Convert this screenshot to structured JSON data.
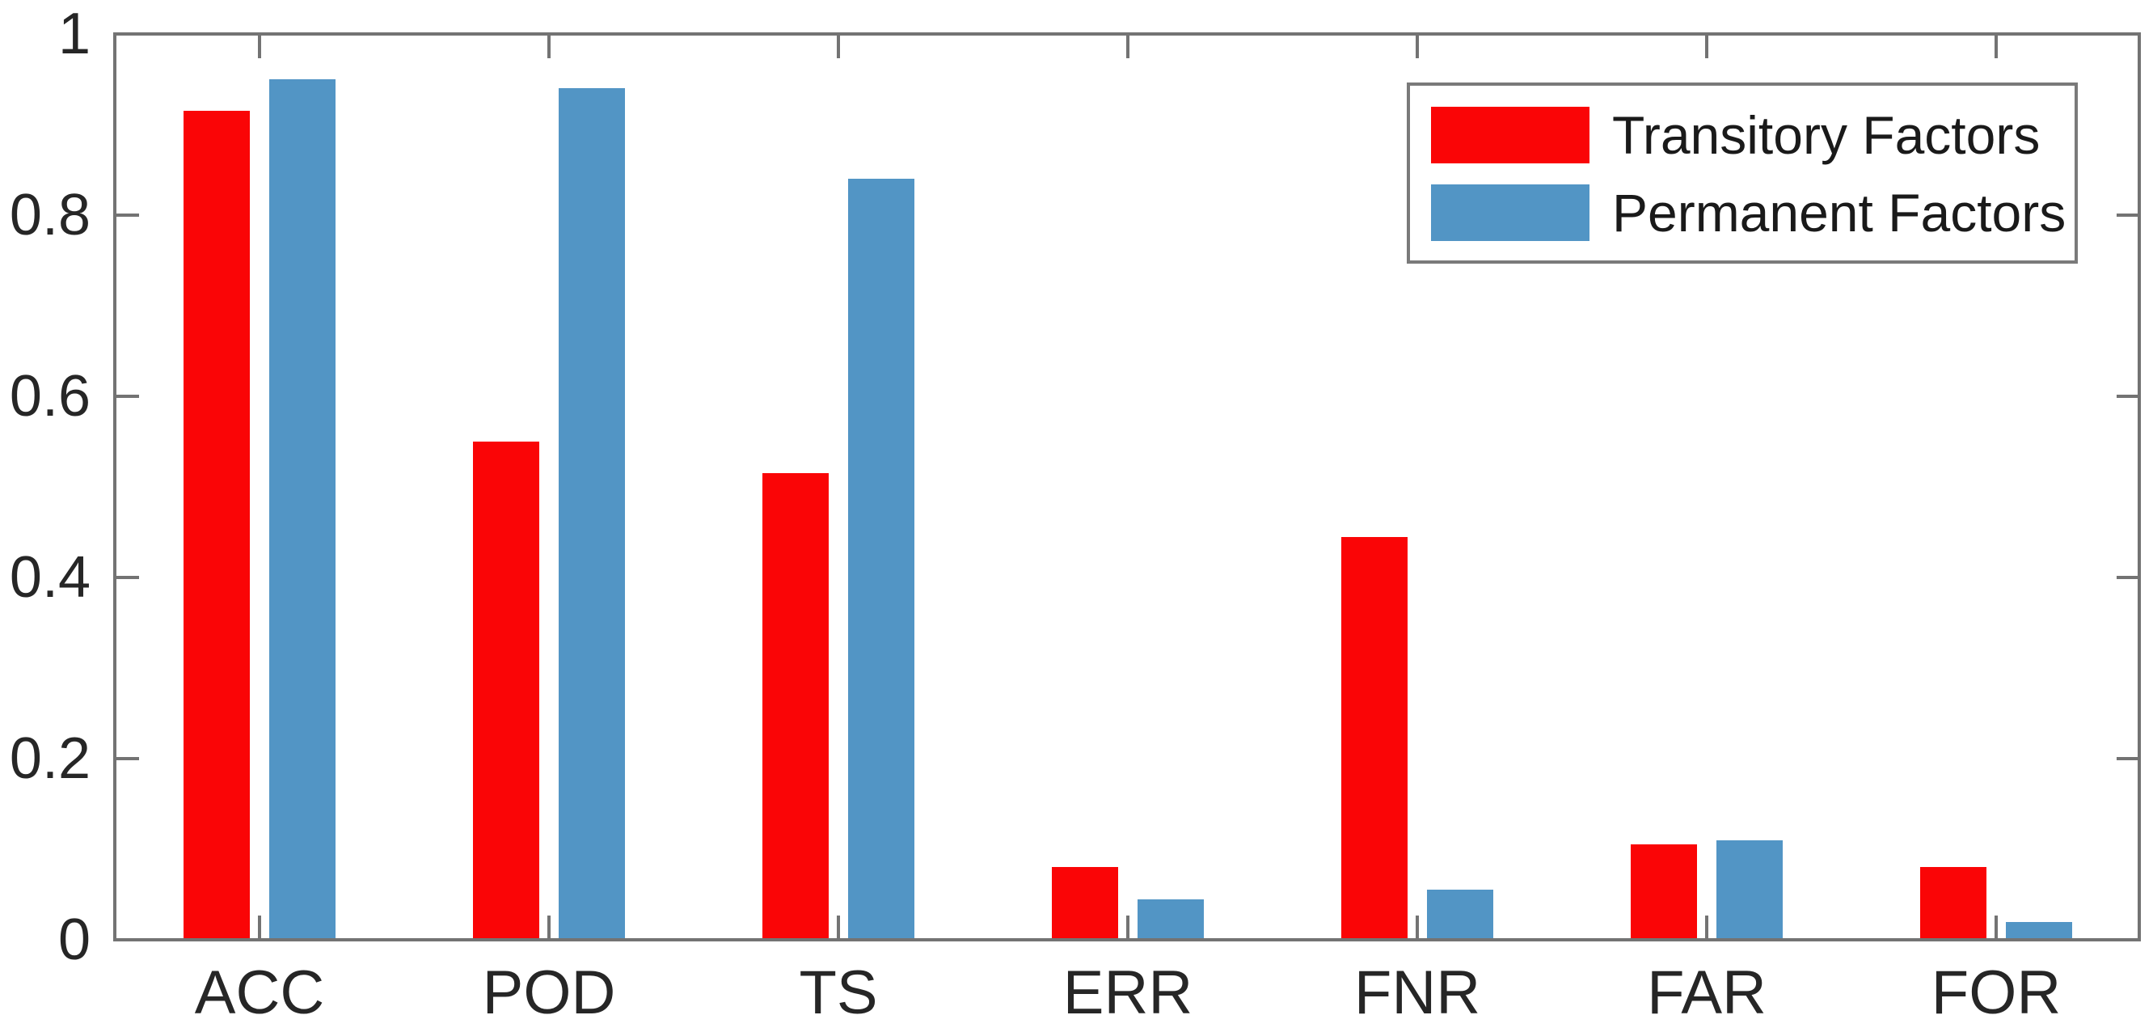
{
  "figure": {
    "background": "#ffffff"
  },
  "axis": {
    "frame_color": "#737373",
    "tick_label_color": "#262626",
    "ytick_labels": [
      "0",
      "0.2",
      "0.4",
      "0.6",
      "0.8",
      "1"
    ]
  },
  "chart_data": {
    "type": "bar",
    "categories": [
      "ACC",
      "POD",
      "TS",
      "ERR",
      "FNR",
      "FAR",
      "FOR"
    ],
    "series": [
      {
        "name": "Transitory Factors",
        "color": "#fa0506",
        "values": [
          0.915,
          0.55,
          0.515,
          0.08,
          0.445,
          0.105,
          0.08
        ]
      },
      {
        "name": "Permanent Factors",
        "color": "#5295c5",
        "values": [
          0.95,
          0.94,
          0.84,
          0.045,
          0.055,
          0.11,
          0.02
        ]
      }
    ],
    "title": "",
    "xlabel": "",
    "ylabel": "",
    "ylim": [
      0,
      1
    ],
    "yticks": [
      0,
      0.2,
      0.4,
      0.6,
      0.8,
      1
    ],
    "grid": false,
    "legend_position": "top-right",
    "box": true
  }
}
